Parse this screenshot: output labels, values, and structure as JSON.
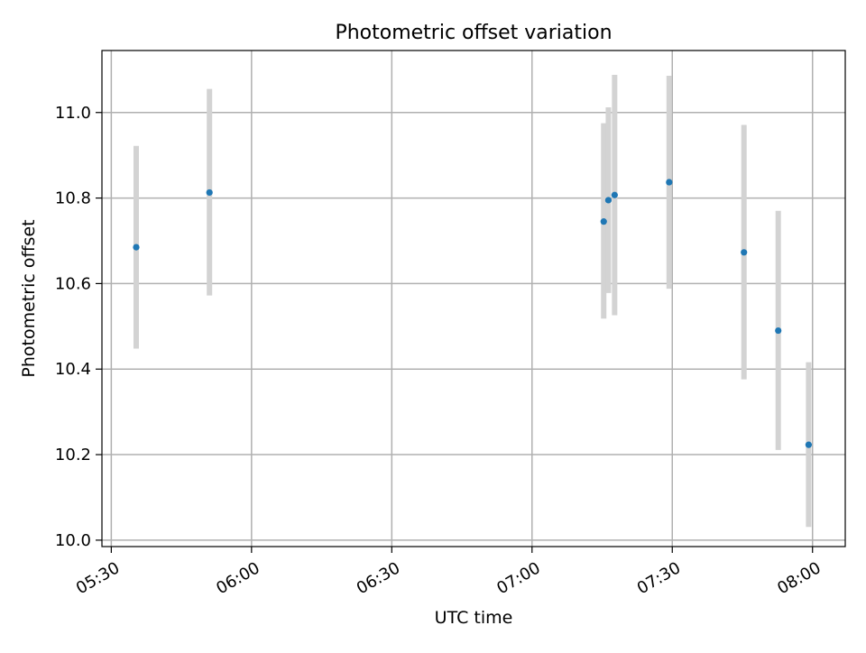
{
  "chart_data": {
    "type": "scatter",
    "title": "Photometric offset variation",
    "xlabel": "UTC time",
    "ylabel": "Photometric offset",
    "x_axis_type": "time",
    "xlim": [
      "05:28",
      "08:07"
    ],
    "ylim": [
      9.985,
      11.145
    ],
    "x_ticks": [
      "05:30",
      "06:00",
      "06:30",
      "07:00",
      "07:30",
      "08:00"
    ],
    "y_ticks": [
      10.0,
      10.2,
      10.4,
      10.6,
      10.8,
      11.0
    ],
    "y_tick_labels": [
      "10.0",
      "10.2",
      "10.4",
      "10.6",
      "10.8",
      "11.0"
    ],
    "grid": true,
    "legend": "none",
    "points": [
      {
        "time": "05:35:20",
        "y": 10.685,
        "err_low": 10.448,
        "err_high": 10.922
      },
      {
        "time": "05:51:00",
        "y": 10.813,
        "err_low": 10.572,
        "err_high": 11.055
      },
      {
        "time": "07:15:20",
        "y": 10.745,
        "err_low": 10.518,
        "err_high": 10.975
      },
      {
        "time": "07:16:20",
        "y": 10.795,
        "err_low": 10.578,
        "err_high": 11.012
      },
      {
        "time": "07:17:40",
        "y": 10.807,
        "err_low": 10.526,
        "err_high": 11.088
      },
      {
        "time": "07:29:20",
        "y": 10.837,
        "err_low": 10.588,
        "err_high": 11.086
      },
      {
        "time": "07:45:20",
        "y": 10.673,
        "err_low": 10.376,
        "err_high": 10.971
      },
      {
        "time": "07:52:40",
        "y": 10.49,
        "err_low": 10.211,
        "err_high": 10.77
      },
      {
        "time": "07:59:10",
        "y": 10.223,
        "err_low": 10.031,
        "err_high": 10.416
      }
    ],
    "colors": {
      "point": "#1f77b4",
      "errorbar": "#d3d3d3",
      "grid": "#b0b0b0",
      "axis": "#000000"
    }
  }
}
